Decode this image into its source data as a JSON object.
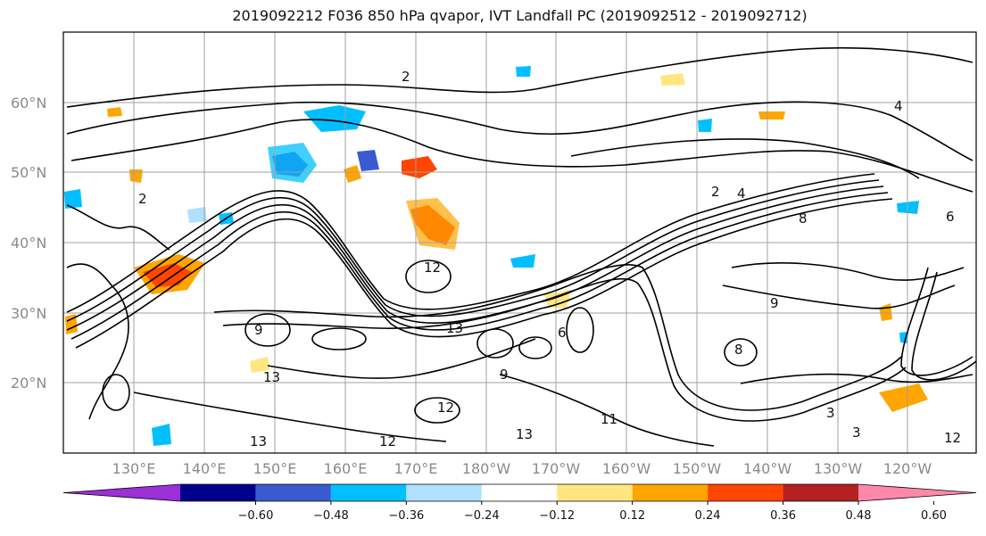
{
  "title": "2019092212 F036 850 hPa qvapor, IVT Landfall PC (2019092512 - 2019092712)",
  "lat_labels": [
    "60°N",
    "50°N",
    "40°N",
    "30°N",
    "20°N"
  ],
  "lon_labels": [
    "130°E",
    "140°E",
    "150°E",
    "160°E",
    "170°E",
    "180°W",
    "170°W",
    "160°W",
    "150°W",
    "140°W",
    "130°W",
    "120°W"
  ],
  "colorbar": {
    "labels": [
      "-0.60",
      "-0.48",
      "-0.36",
      "-0.24",
      "-0.12",
      "0.12",
      "0.24",
      "0.36",
      "0.48",
      "0.60"
    ],
    "colors": [
      "#9b30d6",
      "#00008b",
      "#3a5bd0",
      "#00bfff",
      "#b0e0ff",
      "#ffffff",
      "#ffe680",
      "#ffa500",
      "#ff4500",
      "#b22222",
      "#ff88aa"
    ]
  },
  "contour_labels": [
    "2",
    "2",
    "4",
    "8",
    "9",
    "9",
    "12",
    "12",
    "13",
    "13",
    "13",
    "11",
    "12",
    "6",
    "8",
    "3",
    "6",
    "9",
    "4",
    "2",
    "12",
    "3",
    "13"
  ]
}
